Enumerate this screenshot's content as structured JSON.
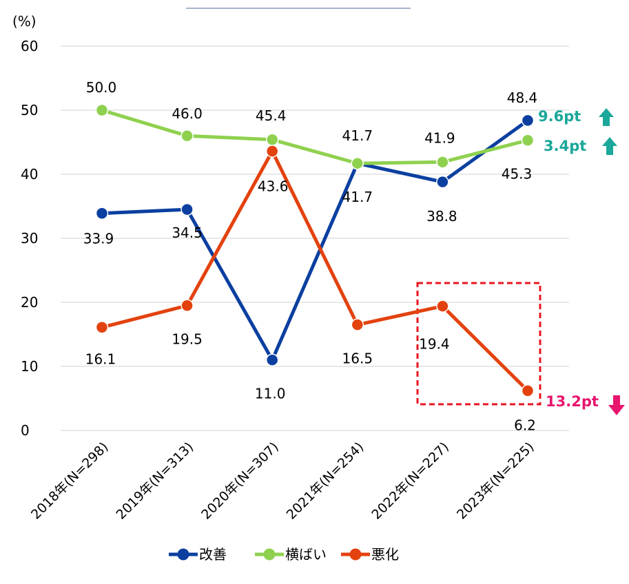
{
  "chart_data": {
    "type": "line",
    "ylabel": "(%)",
    "ylim": [
      0,
      60
    ],
    "yticks": [
      0,
      10,
      20,
      30,
      40,
      50,
      60
    ],
    "categories": [
      "2018年(N=298)",
      "2019年(N=313)",
      "2020年(N=307)",
      "2021年(N=254)",
      "2022年(N=227)",
      "2023年(N=225)"
    ],
    "series": [
      {
        "name": "改善",
        "color": "#0b3fa0",
        "values": [
          33.9,
          34.5,
          11.0,
          41.7,
          38.8,
          48.4
        ],
        "labels": [
          "33.9",
          "34.5",
          "11.0",
          "41.7",
          "38.8",
          "48.4"
        ]
      },
      {
        "name": "横ばい",
        "color": "#8fd14f",
        "values": [
          50.0,
          46.0,
          45.4,
          41.7,
          41.9,
          45.3
        ],
        "labels": [
          "50.0",
          "46.0",
          "45.4",
          "41.7",
          "41.9",
          "45.3"
        ]
      },
      {
        "name": "悪化",
        "color": "#e3420f",
        "values": [
          16.1,
          19.5,
          43.6,
          16.5,
          19.4,
          6.2
        ],
        "labels": [
          "16.1",
          "19.5",
          "43.6",
          "16.5",
          "19.4",
          "6.2"
        ]
      }
    ],
    "annotations": [
      {
        "text": "9.6pt",
        "series": "改善",
        "direction": "up",
        "color": "#1aa89a"
      },
      {
        "text": "3.4pt",
        "series": "横ばい",
        "direction": "up",
        "color": "#1aa89a"
      },
      {
        "text": "13.2pt",
        "series": "悪化",
        "direction": "down",
        "color": "#e8156e"
      }
    ],
    "highlight": {
      "categories": [
        "2022年(N=227)",
        "2023年(N=225)"
      ],
      "series": "悪化",
      "style": "dashed-box",
      "color": "#e8141f"
    },
    "grid": true,
    "legend": "bottom"
  }
}
